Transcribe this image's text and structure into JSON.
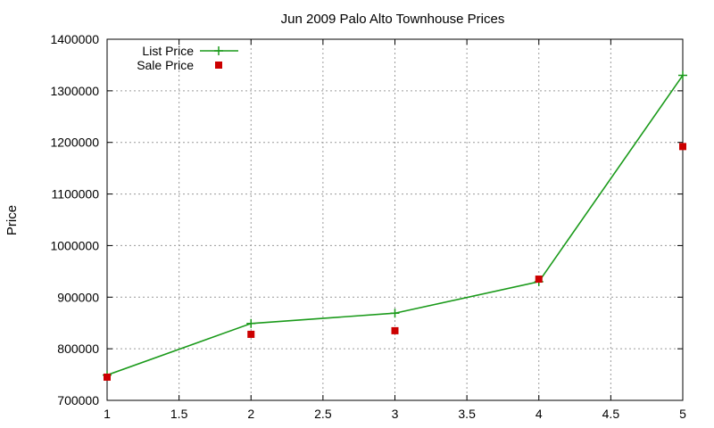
{
  "chart_data": {
    "type": "line",
    "title": "Jun 2009 Palo Alto Townhouse Prices",
    "xlabel": "",
    "ylabel": "Price",
    "xlim": [
      1,
      5
    ],
    "ylim": [
      700000,
      1400000
    ],
    "x_ticks": [
      "1",
      "1.5",
      "2",
      "2.5",
      "3",
      "3.5",
      "4",
      "4.5",
      "5"
    ],
    "y_ticks": [
      "700000",
      "800000",
      "900000",
      "1000000",
      "1100000",
      "1200000",
      "1300000",
      "1400000"
    ],
    "grid": true,
    "legend_position": "top-left",
    "series": [
      {
        "name": "List Price",
        "style": "line-with-plus-markers",
        "color": "#1a9a1a",
        "x": [
          1,
          2,
          3,
          4,
          5
        ],
        "values": [
          749000,
          849000,
          869000,
          930000,
          1330000
        ]
      },
      {
        "name": "Sale Price",
        "style": "square-markers",
        "color": "#cc0000",
        "x": [
          1,
          2,
          3,
          4,
          5
        ],
        "values": [
          745000,
          828000,
          835000,
          935000,
          1192000
        ]
      }
    ]
  }
}
